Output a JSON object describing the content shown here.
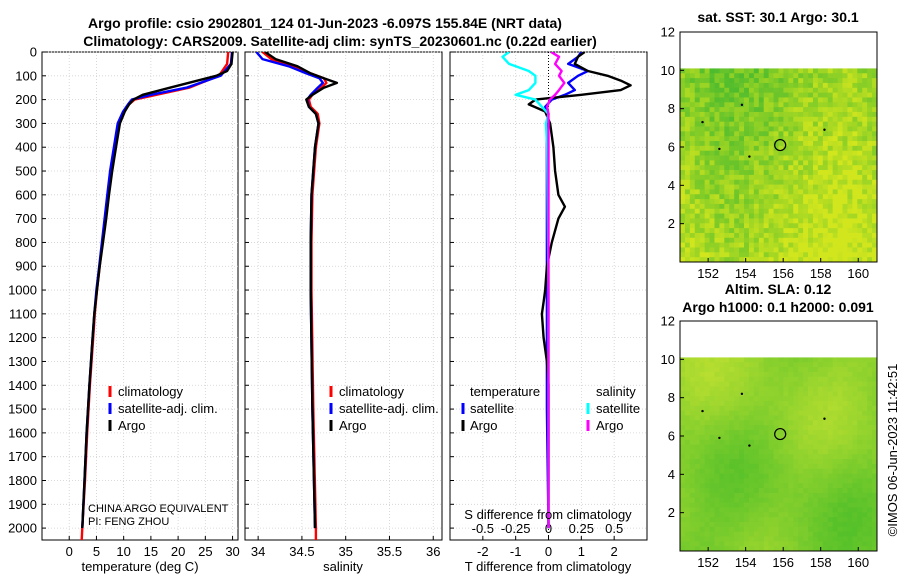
{
  "header": {
    "title_line1": "Argo profile: csio 2902801_124 01-Jun-2023 -6.097S 155.84E (NRT data)",
    "title_line2": "Climatology: CARS2009. Satellite-adj clim: synTS_20230601.nc (0.22d earlier)"
  },
  "colors": {
    "argo": "#000000",
    "climatology": "#ff0000",
    "satellite": "#0000ff",
    "sat_salinity": "#00ffff",
    "argo_salinity_diff": "#ff00ff"
  },
  "chart_data": [
    {
      "id": "temperature",
      "type": "line",
      "xlabel": "temperature (deg C)",
      "ylabel": "",
      "xlim": [
        -5,
        31
      ],
      "ylim": [
        2050,
        0
      ],
      "xticks": [
        "0",
        "5",
        "10",
        "15",
        "20",
        "25",
        "30"
      ],
      "xtick_values": [
        0,
        5,
        10,
        15,
        20,
        25,
        30
      ],
      "yticks": [
        "0",
        "100",
        "200",
        "300",
        "400",
        "500",
        "600",
        "700",
        "800",
        "900",
        "1000",
        "1100",
        "1200",
        "1300",
        "1400",
        "1500",
        "1600",
        "1700",
        "1800",
        "1900",
        "2000"
      ],
      "ytick_values": [
        0,
        100,
        200,
        300,
        400,
        500,
        600,
        700,
        800,
        900,
        1000,
        1100,
        1200,
        1300,
        1400,
        1500,
        1600,
        1700,
        1800,
        1900,
        2000
      ],
      "legend": [
        "climatology",
        "satellite-adj. clim.",
        "Argo"
      ],
      "annotation": [
        "CHINA ARGO EQUIVALENT",
        "PI: FENG ZHOU"
      ],
      "series": [
        {
          "name": "climatology",
          "color": "#ff0000",
          "depth": [
            0,
            50,
            100,
            150,
            180,
            200,
            220,
            250,
            300,
            400,
            500,
            600,
            700,
            800,
            900,
            1000,
            1100,
            1200,
            1400,
            1600,
            1800,
            2000,
            2050
          ],
          "values": [
            29.2,
            29.0,
            27.5,
            22.0,
            16.0,
            12.0,
            11.0,
            10.0,
            9.0,
            8.3,
            7.6,
            7.1,
            6.6,
            6.1,
            5.6,
            5.1,
            4.7,
            4.4,
            3.8,
            3.3,
            2.9,
            2.4,
            2.3
          ]
        },
        {
          "name": "satellite-adj. clim.",
          "color": "#0000ff",
          "depth": [
            0,
            50,
            100,
            150,
            180,
            200,
            220,
            250,
            300,
            400,
            500,
            600,
            700,
            800,
            900,
            1000,
            1100,
            1200,
            1400,
            1600,
            1800,
            2000
          ],
          "values": [
            29.9,
            29.7,
            27.8,
            21.5,
            15.0,
            11.5,
            10.8,
            9.9,
            8.9,
            8.2,
            7.5,
            7.0,
            6.5,
            6.0,
            5.5,
            5.0,
            4.6,
            4.3,
            3.7,
            3.2,
            2.8,
            2.4
          ]
        },
        {
          "name": "Argo",
          "color": "#000000",
          "depth": [
            0,
            50,
            80,
            100,
            150,
            180,
            200,
            220,
            250,
            300,
            400,
            500,
            600,
            700,
            800,
            900,
            1000,
            1100,
            1200,
            1400,
            1600,
            1800,
            2000
          ],
          "values": [
            30.0,
            29.8,
            29.0,
            27.0,
            18.5,
            13.5,
            11.8,
            11.0,
            10.2,
            9.3,
            8.6,
            7.9,
            7.3,
            6.8,
            6.2,
            5.6,
            5.1,
            4.6,
            4.3,
            3.7,
            3.2,
            2.8,
            2.4
          ]
        }
      ]
    },
    {
      "id": "salinity",
      "type": "line",
      "xlabel": "salinity",
      "xlim": [
        33.85,
        36.1
      ],
      "ylim": [
        2050,
        0
      ],
      "xticks": [
        "34",
        "34.5",
        "35",
        "35.5",
        "36"
      ],
      "xtick_values": [
        34,
        34.5,
        35,
        35.5,
        36
      ],
      "legend": [
        "climatology",
        "satellite-adj. clim.",
        "Argo"
      ],
      "series": [
        {
          "name": "climatology",
          "color": "#ff0000",
          "depth": [
            0,
            30,
            60,
            90,
            110,
            130,
            150,
            180,
            200,
            230,
            260,
            300,
            400,
            600,
            800,
            1000,
            1500,
            2000,
            2050
          ],
          "values": [
            34.05,
            34.15,
            34.4,
            34.6,
            34.75,
            34.78,
            34.72,
            34.62,
            34.58,
            34.6,
            34.68,
            34.7,
            34.66,
            34.62,
            34.61,
            34.61,
            34.63,
            34.66,
            34.66
          ]
        },
        {
          "name": "satellite-adj. clim.",
          "color": "#0000ff",
          "depth": [
            0,
            30,
            60,
            90,
            110,
            130,
            150,
            180,
            200,
            230,
            260,
            300,
            400,
            600,
            800,
            1000,
            1500,
            2000
          ],
          "values": [
            33.98,
            34.05,
            34.35,
            34.55,
            34.7,
            34.74,
            34.68,
            34.6,
            34.56,
            34.58,
            34.66,
            34.69,
            34.65,
            34.61,
            34.6,
            34.6,
            34.62,
            34.65
          ]
        },
        {
          "name": "Argo",
          "color": "#000000",
          "depth": [
            0,
            30,
            60,
            90,
            110,
            130,
            150,
            180,
            200,
            230,
            260,
            300,
            400,
            600,
            800,
            1000,
            1500,
            2000
          ],
          "values": [
            34.08,
            34.2,
            34.45,
            34.6,
            34.75,
            34.9,
            34.75,
            34.62,
            34.55,
            34.58,
            34.66,
            34.69,
            34.65,
            34.61,
            34.6,
            34.6,
            34.62,
            34.65
          ]
        }
      ]
    },
    {
      "id": "difference",
      "type": "line",
      "xlabel": "T difference from climatology",
      "top_label": "S difference from climatology",
      "xlim": [
        -3,
        3
      ],
      "ylim": [
        2050,
        0
      ],
      "xticks": [
        "-2",
        "-1",
        "0",
        "1",
        "2"
      ],
      "xtick_values": [
        -2,
        -1,
        0,
        1,
        2
      ],
      "sticks": [
        "-0.5",
        "-0.25",
        "0",
        "0.25",
        "0.5"
      ],
      "stick_values": [
        -0.5,
        -0.25,
        0,
        0.25,
        0.5
      ],
      "legend_groups": [
        {
          "title": "temperature",
          "items": [
            "satellite",
            "Argo"
          ]
        },
        {
          "title": "salinity",
          "items": [
            "satellite",
            "Argo"
          ]
        }
      ],
      "series": [
        {
          "name": "temperature satellite",
          "color": "#0000ff",
          "depth": [
            0,
            20,
            50,
            80,
            100,
            130,
            160,
            180,
            200,
            230,
            260,
            300,
            400,
            600,
            1000,
            1500,
            2000
          ],
          "values": [
            1.0,
            0.9,
            0.6,
            1.2,
            0.9,
            0.6,
            0.8,
            0.5,
            0.1,
            -0.1,
            0.0,
            -0.05,
            -0.05,
            -0.05,
            -0.05,
            -0.05,
            0.0
          ]
        },
        {
          "name": "temperature Argo",
          "color": "#000000",
          "depth": [
            0,
            20,
            50,
            80,
            100,
            120,
            140,
            160,
            180,
            200,
            220,
            250,
            300,
            400,
            500,
            600,
            650,
            700,
            800,
            900,
            1000,
            1050,
            1100,
            1200,
            1300,
            1400,
            1500,
            1600,
            1800,
            2000
          ],
          "values": [
            1.1,
            0.9,
            0.8,
            1.2,
            1.8,
            2.2,
            2.5,
            2.2,
            1.0,
            -0.4,
            -0.6,
            -0.1,
            0.05,
            0.15,
            0.2,
            0.3,
            0.5,
            0.3,
            0.1,
            -0.05,
            -0.1,
            -0.15,
            -0.2,
            -0.15,
            -0.05,
            0.0,
            0.0,
            0.0,
            0.0,
            0.0
          ]
        },
        {
          "name": "salinity satellite",
          "color": "#00ffff",
          "depth": [
            0,
            20,
            50,
            80,
            100,
            130,
            160,
            180,
            200,
            230,
            260,
            300,
            400,
            1000,
            2000
          ],
          "values": [
            -0.3,
            -0.35,
            -0.3,
            -0.15,
            -0.1,
            -0.1,
            -0.15,
            -0.25,
            -0.1,
            -0.05,
            0.0,
            -0.02,
            -0.01,
            0.0,
            0.0
          ]
        },
        {
          "name": "salinity Argo",
          "color": "#ff00ff",
          "depth": [
            0,
            20,
            50,
            80,
            100,
            130,
            160,
            180,
            200,
            230,
            260,
            300,
            400,
            1000,
            2000
          ],
          "values": [
            0.02,
            0.08,
            0.05,
            0.1,
            0.08,
            0.12,
            0.08,
            0.05,
            0.01,
            -0.01,
            0.0,
            0.0,
            0.0,
            0.0,
            0.0
          ]
        }
      ]
    },
    {
      "id": "sst-map",
      "type": "heatmap",
      "title": "sat. SST: 30.1 Argo: 30.1",
      "xlim": [
        150.5,
        161
      ],
      "ylim": [
        0,
        12
      ],
      "xticks": [
        "152",
        "154",
        "156",
        "158",
        "160"
      ],
      "xtick_values": [
        152,
        154,
        156,
        158,
        160
      ],
      "yticks": [
        "2",
        "4",
        "6",
        "8",
        "10",
        "12"
      ],
      "ytick_values": [
        2,
        4,
        6,
        8,
        10,
        12
      ],
      "data_top": 10.1,
      "marker": {
        "lon": 155.84,
        "lat": 6.1
      }
    },
    {
      "id": "sla-map",
      "type": "heatmap",
      "title": "Altim. SLA: 0.12",
      "subtitle": "Argo h1000: 0.1 h2000: 0.091",
      "xlim": [
        150.5,
        161
      ],
      "ylim": [
        0,
        12
      ],
      "xticks": [
        "152",
        "154",
        "156",
        "158",
        "160"
      ],
      "xtick_values": [
        152,
        154,
        156,
        158,
        160
      ],
      "yticks": [
        "2",
        "4",
        "6",
        "8",
        "10",
        "12"
      ],
      "ytick_values": [
        2,
        4,
        6,
        8,
        10,
        12
      ],
      "data_top": 10.1,
      "marker": {
        "lon": 155.84,
        "lat": 6.1
      }
    }
  ],
  "footer": {
    "timestamp": "©IMOS 06-Jun-2023 11:42:51"
  }
}
